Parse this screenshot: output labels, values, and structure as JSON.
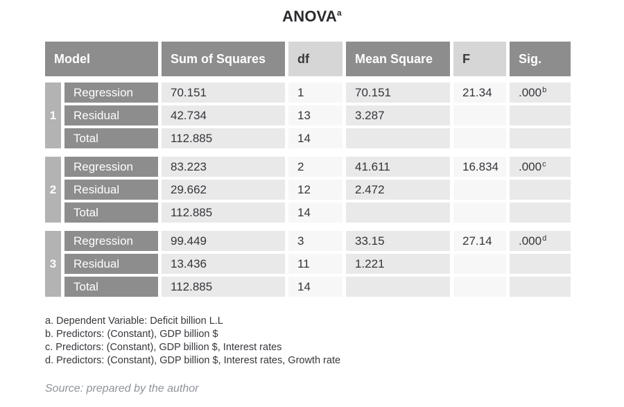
{
  "title": {
    "text": "ANOVA",
    "superscript": "a"
  },
  "table": {
    "headers": [
      {
        "label": "Model",
        "shade": "dark"
      },
      {
        "label": "Sum of Squares",
        "shade": "dark"
      },
      {
        "label": "df",
        "shade": "light"
      },
      {
        "label": "Mean Square",
        "shade": "dark"
      },
      {
        "label": "F",
        "shade": "light"
      },
      {
        "label": "Sig.",
        "shade": "dark"
      }
    ],
    "blocks": [
      {
        "model": "1",
        "rows": [
          {
            "label": "Regression",
            "sum_of_squares": "70.151",
            "df": "1",
            "mean_square": "70.151",
            "f": "21.34",
            "sig": ".000",
            "sig_sup": "b"
          },
          {
            "label": "Residual",
            "sum_of_squares": "42.734",
            "df": "13",
            "mean_square": "3.287",
            "f": "",
            "sig": "",
            "sig_sup": ""
          },
          {
            "label": "Total",
            "sum_of_squares": "112.885",
            "df": "14",
            "mean_square": "",
            "f": "",
            "sig": "",
            "sig_sup": ""
          }
        ]
      },
      {
        "model": "2",
        "rows": [
          {
            "label": "Regression",
            "sum_of_squares": "83.223",
            "df": "2",
            "mean_square": "41.611",
            "f": "16.834",
            "sig": ".000",
            "sig_sup": "c"
          },
          {
            "label": "Residual",
            "sum_of_squares": "29.662",
            "df": "12",
            "mean_square": "2.472",
            "f": "",
            "sig": "",
            "sig_sup": ""
          },
          {
            "label": "Total",
            "sum_of_squares": "112.885",
            "df": "14",
            "mean_square": "",
            "f": "",
            "sig": "",
            "sig_sup": ""
          }
        ]
      },
      {
        "model": "3",
        "rows": [
          {
            "label": "Regression",
            "sum_of_squares": "99.449",
            "df": "3",
            "mean_square": "33.15",
            "f": "27.14",
            "sig": ".000",
            "sig_sup": "d"
          },
          {
            "label": "Residual",
            "sum_of_squares": "13.436",
            "df": "11",
            "mean_square": "1.221",
            "f": "",
            "sig": "",
            "sig_sup": ""
          },
          {
            "label": "Total",
            "sum_of_squares": "112.885",
            "df": "14",
            "mean_square": "",
            "f": "",
            "sig": "",
            "sig_sup": ""
          }
        ]
      }
    ]
  },
  "footnotes": [
    "a. Dependent Variable: Deficit billion L.L",
    "b. Predictors: (Constant), GDP billion $",
    "c. Predictors: (Constant), GDP billion $, Interest rates",
    "d. Predictors: (Constant), GDP billion $, Interest rates, Growth rate"
  ],
  "source": "Source: prepared by the author",
  "colors": {
    "header_dark": "#8d8d8d",
    "header_light": "#d6d6d6",
    "model_strip": "#b3b3b3",
    "cell_gray": "#e9e9e9",
    "cell_light": "#f7f7f7",
    "text": "#34343a",
    "source_text": "#8d929b"
  }
}
